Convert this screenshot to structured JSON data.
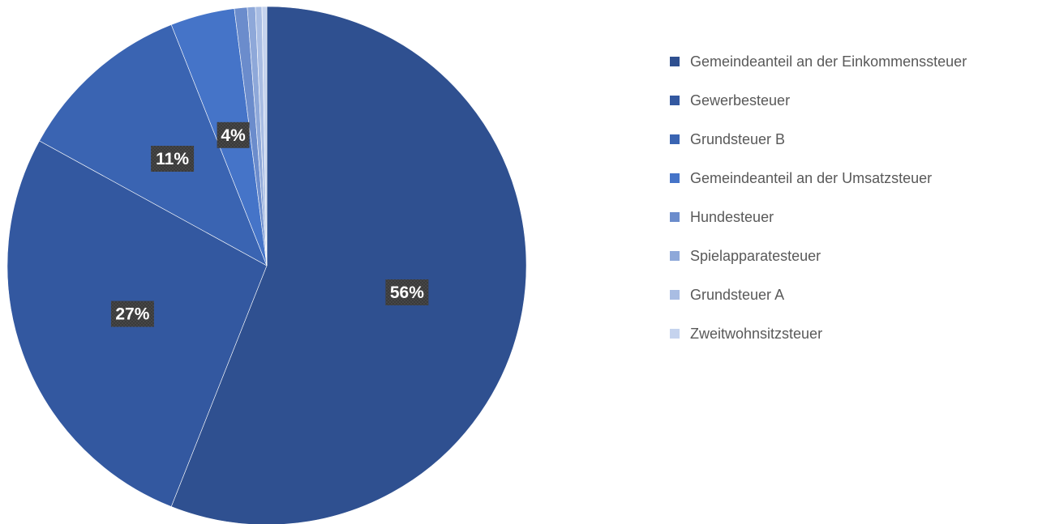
{
  "chart_data": {
    "type": "pie",
    "categories": [
      "Gemeindeanteil an der Einkommenssteuer",
      "Gewerbesteuer",
      "Grundsteuer B",
      "Gemeindeanteil an der Umsatzsteuer",
      "Hundesteuer",
      "Spielapparatesteuer",
      "Grundsteuer A",
      "Zweitwohnsitzsteuer"
    ],
    "values": [
      56,
      27,
      11,
      4,
      0.8,
      0.5,
      0.4,
      0.3
    ],
    "data_labels": [
      "56%",
      "27%",
      "11%",
      "4%",
      "",
      "",
      "",
      ""
    ],
    "colors": [
      "#2f5090",
      "#3358a0",
      "#3a64b2",
      "#4574c8",
      "#6b8ccc",
      "#8ea8d9",
      "#a9bde3",
      "#c5d3ee"
    ],
    "title": "",
    "legend_position": "right"
  }
}
